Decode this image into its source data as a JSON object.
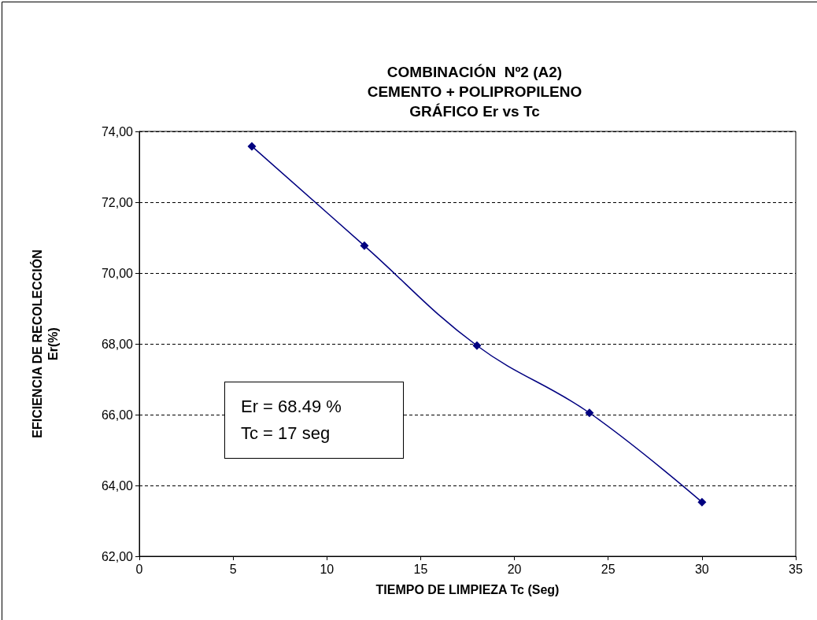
{
  "chart_data": {
    "type": "line",
    "title": "COMBINACIÓN  Nº2 (A2)\nCEMENTO + POLIPROPILENO\nGRÁFICO Er vs Tc",
    "xlabel": "TIEMPO DE LIMPIEZA Tc (Seg)",
    "ylabel": "EFICIENCIA DE RECOLECCIÓN\nEr(%)",
    "x": [
      6,
      12,
      18,
      24,
      30
    ],
    "series": [
      {
        "color": "#000080",
        "values": [
          73.58,
          70.77,
          67.95,
          66.05,
          63.53
        ]
      }
    ],
    "xlim": [
      0,
      35
    ],
    "xticks": [
      0,
      5,
      10,
      15,
      20,
      25,
      30,
      35
    ],
    "ylim": [
      62,
      74
    ],
    "yticks": [
      {
        "value": 62,
        "label": "62,00"
      },
      {
        "value": 64,
        "label": "64,00"
      },
      {
        "value": 66,
        "label": "66,00"
      },
      {
        "value": 68,
        "label": "68,00"
      },
      {
        "value": 70,
        "label": "70,00"
      },
      {
        "value": 72,
        "label": "72,00"
      },
      {
        "value": 74,
        "label": "74,00"
      }
    ],
    "grid": "y",
    "marker": "diamond",
    "line_style": "solid",
    "annotations": [
      "Er = 68.49 %\nTc = 17 seg"
    ]
  }
}
